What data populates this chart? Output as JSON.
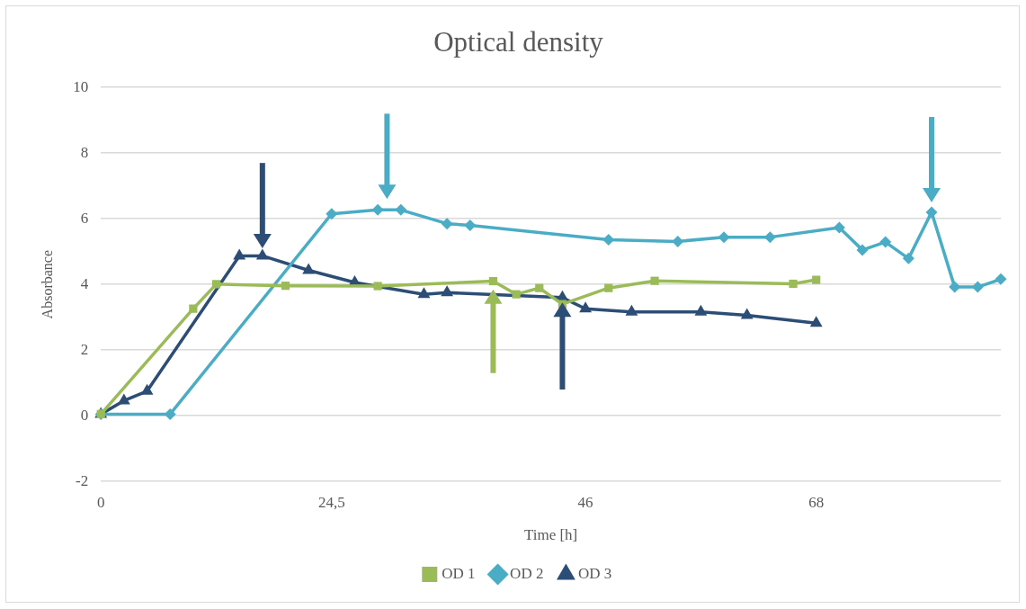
{
  "chart_data": {
    "type": "line",
    "title": "Optical density",
    "xlabel": "Time [h]",
    "ylabel": "Absorbance",
    "categories": [
      "0",
      null,
      null,
      null,
      null,
      null,
      null,
      null,
      null,
      null,
      "24,5",
      null,
      null,
      null,
      null,
      null,
      null,
      null,
      null,
      null,
      null,
      "46",
      null,
      null,
      null,
      null,
      null,
      null,
      null,
      null,
      null,
      "68",
      null,
      null,
      null,
      null,
      null,
      null,
      null,
      null
    ],
    "ylim": [
      -2,
      10
    ],
    "yticks": [
      -2,
      0,
      2,
      4,
      6,
      8,
      10
    ],
    "grid": "y",
    "legend": "bottom",
    "line_style": "solid",
    "series": [
      {
        "name": "OD 1",
        "color": "#9bbb59",
        "marker": "square",
        "values": [
          0.05,
          null,
          null,
          null,
          3.26,
          4.01,
          null,
          null,
          3.96,
          null,
          null,
          null,
          3.95,
          null,
          null,
          null,
          null,
          4.1,
          3.7,
          3.89,
          3.4,
          null,
          3.89,
          null,
          4.11,
          null,
          null,
          null,
          null,
          null,
          4.02,
          4.14,
          null,
          null,
          null,
          null,
          null,
          null,
          null,
          null
        ]
      },
      {
        "name": "OD 2",
        "color": "#4bacc6",
        "marker": "diamond",
        "values": [
          0.05,
          null,
          null,
          0.05,
          null,
          null,
          null,
          null,
          null,
          null,
          6.15,
          null,
          6.27,
          6.27,
          null,
          5.85,
          5.8,
          null,
          null,
          null,
          null,
          null,
          5.36,
          null,
          null,
          5.31,
          null,
          5.44,
          null,
          5.44,
          null,
          null,
          5.73,
          5.05,
          5.29,
          4.79,
          6.2,
          3.92,
          3.92,
          4.16
        ]
      },
      {
        "name": "OD 3",
        "color": "#2c4d75",
        "marker": "triangle",
        "values": [
          0.05,
          0.46,
          0.75,
          null,
          null,
          null,
          4.87,
          4.87,
          null,
          4.43,
          null,
          4.06,
          null,
          null,
          3.7,
          3.75,
          null,
          null,
          null,
          null,
          3.6,
          3.26,
          null,
          3.16,
          null,
          null,
          3.16,
          null,
          3.06,
          null,
          null,
          2.82,
          null,
          null,
          null,
          null,
          null,
          null,
          null,
          null
        ]
      }
    ]
  }
}
